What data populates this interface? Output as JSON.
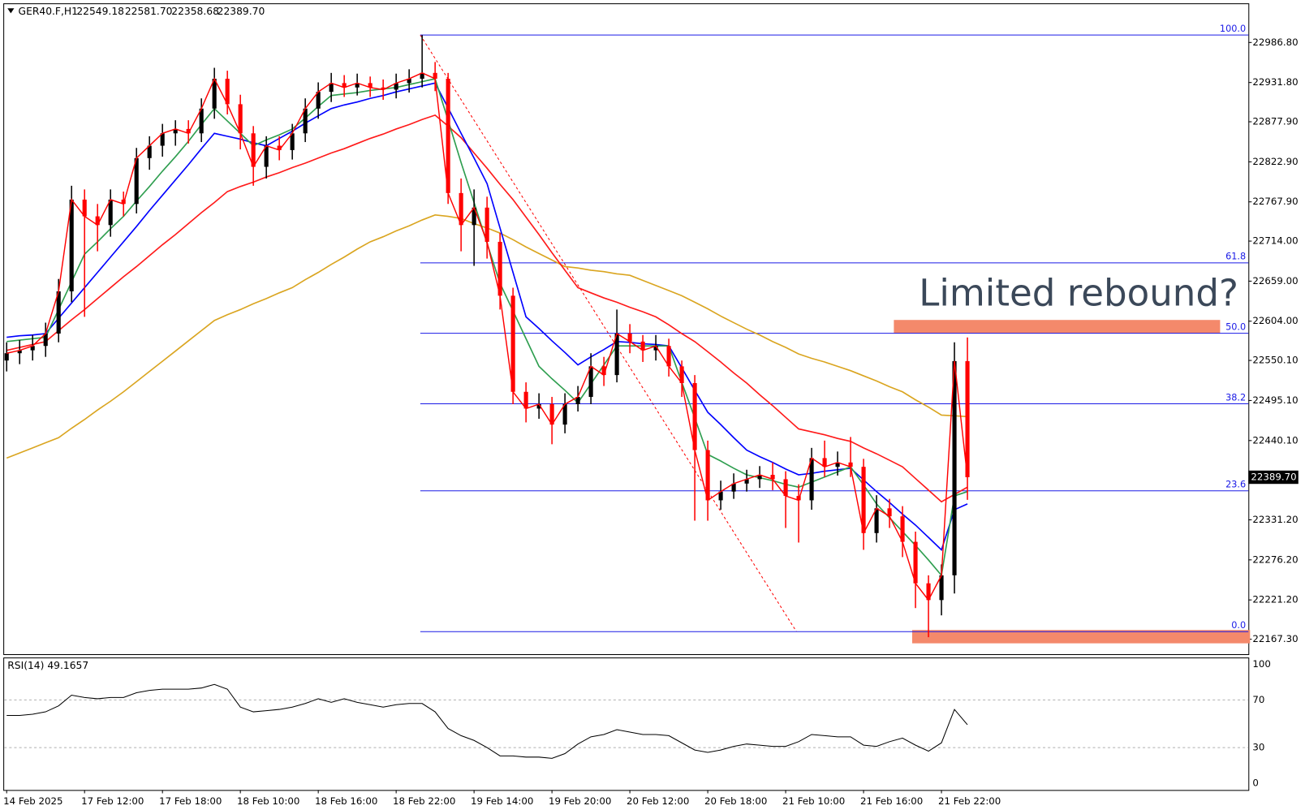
{
  "chart_data": {
    "type": "candlestick",
    "title": "GER40.F,H1",
    "header_values": [
      "22549.18",
      "22581.70",
      "22358.68",
      "22389.70"
    ],
    "categories": [
      "14 Feb 2025",
      null,
      null,
      null,
      null,
      null,
      "17 Feb 12:00",
      null,
      null,
      null,
      null,
      null,
      "17 Feb 18:00",
      null,
      null,
      null,
      null,
      null,
      "18 Feb 10:00",
      null,
      null,
      null,
      null,
      null,
      "18 Feb 16:00",
      null,
      null,
      null,
      null,
      null,
      "18 Feb 22:00",
      null,
      null,
      null,
      null,
      null,
      "19 Feb 14:00",
      null,
      null,
      null,
      null,
      null,
      "19 Feb 20:00",
      null,
      null,
      null,
      null,
      null,
      "20 Feb 12:00",
      null,
      null,
      null,
      null,
      null,
      "20 Feb 18:00",
      null,
      null,
      null,
      null,
      null,
      "21 Feb 10:00",
      null,
      null,
      null,
      null,
      null,
      "21 Feb 16:00",
      null,
      null,
      null,
      null,
      null,
      "21 Feb 22:00",
      null,
      null
    ],
    "open": [
      22550,
      22560,
      22564,
      22570,
      22587,
      22645,
      22771,
      22748,
      22736,
      22771,
      22765,
      22828,
      22845,
      22862,
      22868,
      22862,
      22896,
      22937,
      22902,
      22862,
      22816,
      22845,
      22839,
      22862,
      22896,
      22919,
      22931,
      22925,
      22931,
      22925,
      22922,
      22931,
      22937,
      22945,
      22937,
      22780,
      22736,
      22760,
      22713,
      22639,
      22507,
      22484,
      22490,
      22462,
      22490,
      22500,
      22542,
      22530,
      22587,
      22576,
      22564,
      22570,
      22542,
      22519,
      22427,
      22358,
      22370,
      22381,
      22387,
      22393,
      22387,
      22364,
      22358,
      22416,
      22404,
      22410,
      22404,
      22313,
      22347,
      22336,
      22301,
      22244,
      22221,
      22255,
      22549.18
    ],
    "high": [
      22575,
      22578,
      22585,
      22602,
      22662,
      22790,
      22785,
      22765,
      22785,
      22782,
      22842,
      22858,
      22875,
      22880,
      22880,
      22910,
      22952,
      22948,
      22915,
      22872,
      22858,
      22858,
      22875,
      22910,
      22932,
      22945,
      22942,
      22944,
      22940,
      22936,
      22944,
      22950,
      22997,
      22960,
      22945,
      22800,
      22785,
      22775,
      22725,
      22650,
      22520,
      22505,
      22500,
      22505,
      22515,
      22560,
      22555,
      22620,
      22600,
      22585,
      22585,
      22580,
      22550,
      22530,
      22440,
      22385,
      22395,
      22400,
      22405,
      22410,
      22398,
      22380,
      22430,
      22440,
      22425,
      22445,
      22415,
      22365,
      22360,
      22350,
      22315,
      22255,
      22270,
      22575,
      22581.7
    ],
    "low": [
      22535,
      22545,
      22550,
      22555,
      22575,
      22630,
      22610,
      22700,
      22720,
      22748,
      22752,
      22812,
      22830,
      22845,
      22848,
      22850,
      22882,
      22888,
      22840,
      22790,
      22800,
      22825,
      22826,
      22850,
      22882,
      22905,
      22912,
      22914,
      22912,
      22908,
      22910,
      22918,
      22925,
      22920,
      22765,
      22700,
      22680,
      22690,
      22620,
      22490,
      22465,
      22470,
      22435,
      22450,
      22480,
      22490,
      22515,
      22520,
      22560,
      22548,
      22550,
      22528,
      22500,
      22330,
      22330,
      22345,
      22360,
      22370,
      22375,
      22372,
      22320,
      22300,
      22345,
      22390,
      22392,
      22390,
      22290,
      22300,
      22320,
      22280,
      22210,
      22170,
      22200,
      22230,
      22358.68
    ],
    "close": [
      22560,
      22564,
      22570,
      22587,
      22645,
      22771,
      22748,
      22736,
      22771,
      22765,
      22828,
      22845,
      22862,
      22868,
      22862,
      22896,
      22937,
      22902,
      22862,
      22816,
      22845,
      22839,
      22862,
      22896,
      22919,
      22931,
      22925,
      22931,
      22925,
      22922,
      22931,
      22937,
      22945,
      22937,
      22780,
      22736,
      22760,
      22713,
      22639,
      22507,
      22484,
      22490,
      22462,
      22490,
      22500,
      22542,
      22530,
      22587,
      22576,
      22564,
      22570,
      22542,
      22519,
      22427,
      22358,
      22370,
      22381,
      22387,
      22393,
      22387,
      22364,
      22358,
      22416,
      22404,
      22410,
      22404,
      22313,
      22347,
      22336,
      22301,
      22244,
      22221,
      22255,
      22549.18,
      22389.7
    ],
    "up_color": "#000000",
    "down_color": "#ff0000",
    "close_line_color": "#ff0000",
    "series": [
      {
        "color": "#daa520",
        "values": [
          22416,
          22423,
          22430,
          22437,
          22444,
          22457,
          22469,
          22482,
          22494,
          22507,
          22521,
          22535,
          22549,
          22563,
          22577,
          22591,
          22605,
          22613,
          22620,
          22628,
          22635,
          22643,
          22650,
          22661,
          22671,
          22682,
          22692,
          22703,
          22713,
          22720,
          22728,
          22735,
          22743,
          22750,
          22748,
          22745,
          22738,
          22732,
          22725,
          22716,
          22706,
          22697,
          22688,
          22679,
          22677,
          22674,
          22672,
          22669,
          22667,
          22660,
          22653,
          22646,
          22639,
          22630,
          22621,
          22611,
          22602,
          22593,
          22585,
          22576,
          22568,
          22559,
          22553,
          22548,
          22542,
          22536,
          22529,
          22522,
          22514,
          22507,
          22496,
          22486,
          22475,
          22474,
          22473
        ]
      },
      {
        "color": "#ff1a1a",
        "values": [
          22564,
          22568,
          22572,
          22576,
          22591,
          22606,
          22620,
          22635,
          22650,
          22665,
          22679,
          22694,
          22709,
          22723,
          22738,
          22753,
          22767,
          22782,
          22789,
          22795,
          22802,
          22808,
          22815,
          22821,
          22828,
          22835,
          22841,
          22848,
          22855,
          22861,
          22868,
          22874,
          22881,
          22887,
          22872,
          22856,
          22835,
          22814,
          22792,
          22771,
          22747,
          22723,
          22698,
          22674,
          22650,
          22643,
          22636,
          22630,
          22623,
          22617,
          22610,
          22599,
          22587,
          22576,
          22562,
          22548,
          22533,
          22519,
          22503,
          22488,
          22472,
          22456,
          22452,
          22448,
          22443,
          22439,
          22430,
          22422,
          22413,
          22404,
          22388,
          22372,
          22356,
          22366,
          22376
        ]
      },
      {
        "color": "#0000ff",
        "values": [
          22582,
          22584,
          22585,
          22587,
          22608,
          22629,
          22650,
          22671,
          22692,
          22713,
          22734,
          22756,
          22777,
          22798,
          22819,
          22841,
          22862,
          22858,
          22854,
          22849,
          22845,
          22855,
          22865,
          22876,
          22886,
          22896,
          22901,
          22905,
          22910,
          22914,
          22919,
          22923,
          22927,
          22931,
          22897,
          22862,
          22828,
          22793,
          22732,
          22671,
          22610,
          22594,
          22577,
          22561,
          22544,
          22555,
          22565,
          22576,
          22575,
          22573,
          22572,
          22570,
          22540,
          22509,
          22479,
          22462,
          22444,
          22427,
          22418,
          22410,
          22401,
          22393,
          22395,
          22398,
          22400,
          22402,
          22386,
          22370,
          22355,
          22339,
          22324,
          22307,
          22290,
          22345,
          22353
        ]
      },
      {
        "color": "#2e9e4f",
        "values": [
          22576,
          22578,
          22580,
          22582,
          22620,
          22658,
          22696,
          22713,
          22731,
          22748,
          22769,
          22789,
          22810,
          22830,
          22851,
          22874,
          22896,
          22879,
          22862,
          22845,
          22853,
          22860,
          22868,
          22883,
          22899,
          22914,
          22916,
          22918,
          22921,
          22923,
          22925,
          22929,
          22933,
          22937,
          22880,
          22822,
          22767,
          22711,
          22656,
          22618,
          22580,
          22542,
          22525,
          22509,
          22492,
          22518,
          22544,
          22570,
          22570,
          22570,
          22570,
          22570,
          22520,
          22471,
          22421,
          22412,
          22402,
          22393,
          22389,
          22385,
          22380,
          22376,
          22383,
          22390,
          22397,
          22404,
          22379,
          22353,
          22334,
          22315,
          22296,
          22276,
          22255,
          22364,
          22370
        ]
      }
    ],
    "ylim": [
      22146.7,
      23039.4
    ],
    "yticks": [
      {
        "value": 22986.8,
        "label": "22986.80"
      },
      {
        "value": 22931.8,
        "label": "22931.80"
      },
      {
        "value": 22877.9,
        "label": "22877.90"
      },
      {
        "value": 22822.9,
        "label": "22822.90"
      },
      {
        "value": 22767.9,
        "label": "22767.90"
      },
      {
        "value": 22714,
        "label": "22714.00"
      },
      {
        "value": 22659,
        "label": "22659.00"
      },
      {
        "value": 22604,
        "label": "22604.00"
      },
      {
        "value": 22550.1,
        "label": "22550.10"
      },
      {
        "value": 22495.1,
        "label": "22495.10"
      },
      {
        "value": 22440.1,
        "label": "22440.10"
      },
      {
        "value": 22331.2,
        "label": "22331.20"
      },
      {
        "value": 22276.2,
        "label": "22276.20"
      },
      {
        "value": 22221.2,
        "label": "22221.20"
      },
      {
        "value": 22167.3,
        "label": "22167.30"
      }
    ],
    "fibonacci": {
      "color": "#1a1ae6",
      "levels": [
        {
          "value": 22997.1,
          "label": "100.0"
        },
        {
          "value": 22684.1,
          "label": "61.8"
        },
        {
          "value": 22587.4,
          "label": "50.0"
        },
        {
          "value": 22490.6,
          "label": "38.2"
        },
        {
          "value": 22371,
          "label": "23.6"
        },
        {
          "value": 22177.6,
          "label": "0.0"
        }
      ]
    },
    "zones": [
      {
        "low": 22587.4,
        "high": 22605.7,
        "color": "#f4896b"
      },
      {
        "low": 22161.6,
        "high": 22179.9,
        "color": "#f4896b"
      }
    ],
    "annotation": "Limited rebound?",
    "rsi": {
      "title": "RSI(14) 49.1657",
      "color": "#000000",
      "ylim": [
        0,
        100
      ],
      "yticks": [
        100,
        70,
        30,
        0
      ],
      "values": [
        57,
        57,
        58,
        60,
        65,
        74,
        72,
        71,
        72,
        72,
        76,
        78,
        79,
        79,
        79,
        80,
        83,
        79,
        64,
        60,
        61,
        62,
        64,
        67,
        71,
        68,
        71,
        68,
        66,
        64,
        66,
        67,
        67,
        60,
        46,
        40,
        36,
        30,
        23,
        23,
        22,
        22,
        21,
        25,
        33,
        39,
        41,
        45,
        43,
        41,
        41,
        40,
        34,
        28,
        26,
        28,
        31,
        33,
        32,
        31,
        31,
        35,
        41,
        40,
        39,
        39,
        32,
        31,
        35,
        38,
        32,
        27,
        34,
        62,
        49.1657
      ]
    }
  }
}
